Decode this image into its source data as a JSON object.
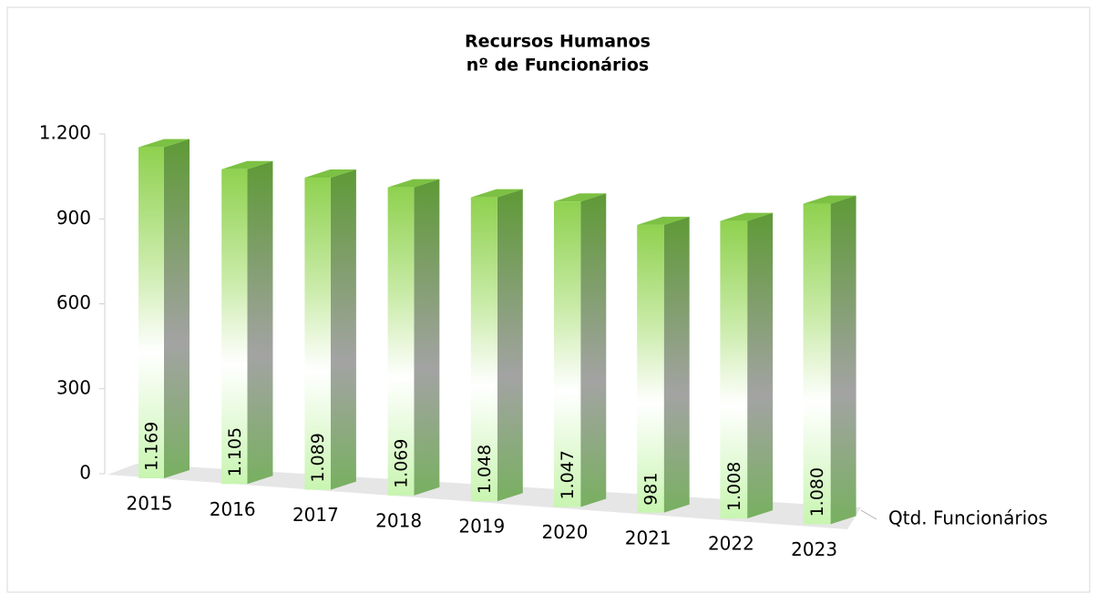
{
  "chart_data": {
    "type": "bar3d",
    "title": "Recursos Humanos",
    "subtitle": "nº de Funcionários",
    "categories": [
      "2015",
      "2016",
      "2017",
      "2018",
      "2019",
      "2020",
      "2021",
      "2022",
      "2023"
    ],
    "series": [
      {
        "name": "Qtd. Funcionários",
        "color": "#8fd14f",
        "values": [
          1169,
          1105,
          1089,
          1069,
          1048,
          1047,
          981,
          1008,
          1080
        ],
        "value_labels": [
          "1.169",
          "1.105",
          "1.089",
          "1.069",
          "1.048",
          "1.047",
          "981",
          "1.008",
          "1.080"
        ]
      }
    ],
    "ylim": [
      0,
      1200
    ],
    "yticks": [
      0,
      300,
      600,
      900,
      {
        "value": 1200,
        "label": "1.200"
      }
    ]
  }
}
